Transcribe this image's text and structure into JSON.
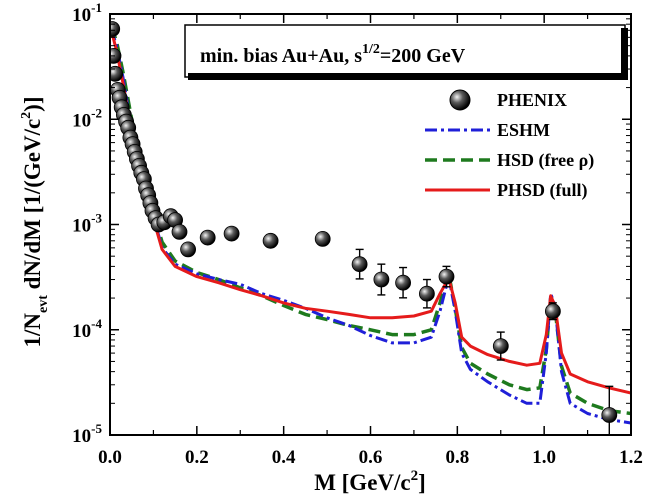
{
  "chart_data": {
    "type": "line",
    "annotation": {
      "pre": "min. bias Au+Au,  s",
      "sup": "1/2",
      "post": "=200 GeV"
    },
    "xlabel": {
      "main": "M  [GeV/c",
      "sup": "2",
      "end": "]"
    },
    "ylabel": {
      "a": "1/N",
      "a_sub": "evt",
      "b": " dN/dM  [1/(GeV/c",
      "b_sup": "2",
      "c": ")]"
    },
    "xlim": [
      0.0,
      1.2
    ],
    "ylim": [
      1e-05,
      0.1
    ],
    "yscale": "log",
    "x_ticks": [
      "0.0",
      "0.2",
      "0.4",
      "0.6",
      "0.8",
      "1.0",
      "1.2"
    ],
    "y_ticks": [
      {
        "base": "10",
        "exp": "-5"
      },
      {
        "base": "10",
        "exp": "-4"
      },
      {
        "base": "10",
        "exp": "-3"
      },
      {
        "base": "10",
        "exp": "-2"
      },
      {
        "base": "10",
        "exp": "-1"
      }
    ],
    "legend_position": "top-right",
    "series": [
      {
        "name": "PHENIX",
        "style": "points",
        "color": "#111111",
        "points": [
          [
            0.005,
            0.072
          ],
          [
            0.008,
            0.04
          ],
          [
            0.012,
            0.027
          ],
          [
            0.018,
            0.019
          ],
          [
            0.022,
            0.016
          ],
          [
            0.027,
            0.013
          ],
          [
            0.032,
            0.011
          ],
          [
            0.037,
            0.0095
          ],
          [
            0.042,
            0.0083
          ],
          [
            0.047,
            0.0067
          ],
          [
            0.052,
            0.0058
          ],
          [
            0.057,
            0.0049
          ],
          [
            0.062,
            0.0042
          ],
          [
            0.067,
            0.0036
          ],
          [
            0.072,
            0.0031
          ],
          [
            0.078,
            0.0027
          ],
          [
            0.083,
            0.0022
          ],
          [
            0.088,
            0.0019
          ],
          [
            0.093,
            0.0016
          ],
          [
            0.098,
            0.00135
          ],
          [
            0.105,
            0.00115
          ],
          [
            0.112,
            0.001
          ],
          [
            0.125,
            0.00105
          ],
          [
            0.14,
            0.0012
          ],
          [
            0.15,
            0.0011
          ],
          [
            0.16,
            0.00085
          ],
          [
            0.18,
            0.00058
          ],
          [
            0.225,
            0.00075
          ],
          [
            0.28,
            0.00082
          ],
          [
            0.37,
            0.0007
          ],
          [
            0.49,
            0.00073
          ],
          [
            0.575,
            0.00042
          ],
          [
            0.625,
            0.0003
          ],
          [
            0.675,
            0.00028
          ],
          [
            0.73,
            0.00022
          ],
          [
            0.775,
            0.00032
          ],
          [
            0.9,
            7e-05
          ],
          [
            1.02,
            0.00015
          ],
          [
            1.15,
            1.55e-05
          ]
        ],
        "errors_up": [
          [
            0.575,
            0.00058
          ],
          [
            0.625,
            0.00042
          ],
          [
            0.675,
            0.00039
          ],
          [
            0.73,
            0.0003
          ],
          [
            0.775,
            0.0004
          ],
          [
            0.9,
            9.5e-05
          ],
          [
            1.02,
            0.00018
          ],
          [
            1.15,
            2.9e-05
          ]
        ]
      },
      {
        "name": "ESHM",
        "style": "dash-dot",
        "color": "#1f1fd8",
        "points": [
          [
            0.003,
            0.072
          ],
          [
            0.015,
            0.05
          ],
          [
            0.03,
            0.025
          ],
          [
            0.05,
            0.008
          ],
          [
            0.07,
            0.0035
          ],
          [
            0.09,
            0.0017
          ],
          [
            0.105,
            0.001
          ],
          [
            0.12,
            0.0006
          ],
          [
            0.15,
            0.00042
          ],
          [
            0.2,
            0.00034
          ],
          [
            0.25,
            0.0003
          ],
          [
            0.3,
            0.00027
          ],
          [
            0.35,
            0.00022
          ],
          [
            0.4,
            0.00019
          ],
          [
            0.45,
            0.00016
          ],
          [
            0.5,
            0.00013
          ],
          [
            0.55,
            0.00011
          ],
          [
            0.6,
            8.8e-05
          ],
          [
            0.65,
            7.5e-05
          ],
          [
            0.7,
            7.5e-05
          ],
          [
            0.74,
            8.5e-05
          ],
          [
            0.76,
            0.00015
          ],
          [
            0.78,
            0.00032
          ],
          [
            0.795,
            0.00015
          ],
          [
            0.81,
            6e-05
          ],
          [
            0.83,
            4.2e-05
          ],
          [
            0.87,
            3.2e-05
          ],
          [
            0.92,
            2.4e-05
          ],
          [
            0.96,
            2e-05
          ],
          [
            0.99,
            2e-05
          ],
          [
            1.005,
            6e-05
          ],
          [
            1.015,
            0.00022
          ],
          [
            1.025,
            0.00017
          ],
          [
            1.04,
            4e-05
          ],
          [
            1.06,
            2e-05
          ],
          [
            1.1,
            1.6e-05
          ],
          [
            1.15,
            1.4e-05
          ],
          [
            1.2,
            1.3e-05
          ]
        ]
      },
      {
        "name": "HSD (free ρ)",
        "style": "dashed",
        "color": "#1e7a1e",
        "points": [
          [
            0.003,
            0.075
          ],
          [
            0.015,
            0.055
          ],
          [
            0.03,
            0.028
          ],
          [
            0.05,
            0.01
          ],
          [
            0.07,
            0.0042
          ],
          [
            0.09,
            0.0019
          ],
          [
            0.105,
            0.0011
          ],
          [
            0.12,
            0.00068
          ],
          [
            0.15,
            0.00045
          ],
          [
            0.2,
            0.00035
          ],
          [
            0.25,
            0.0003
          ],
          [
            0.3,
            0.00025
          ],
          [
            0.35,
            0.00021
          ],
          [
            0.4,
            0.00017
          ],
          [
            0.45,
            0.00014
          ],
          [
            0.5,
            0.000125
          ],
          [
            0.55,
            0.00011
          ],
          [
            0.6,
            0.0001
          ],
          [
            0.65,
            9e-05
          ],
          [
            0.7,
            9e-05
          ],
          [
            0.74,
            0.0001
          ],
          [
            0.76,
            0.00018
          ],
          [
            0.78,
            0.00034
          ],
          [
            0.795,
            0.00016
          ],
          [
            0.81,
            6.8e-05
          ],
          [
            0.83,
            4.8e-05
          ],
          [
            0.87,
            3.8e-05
          ],
          [
            0.92,
            3e-05
          ],
          [
            0.96,
            2.7e-05
          ],
          [
            0.99,
            2.8e-05
          ],
          [
            1.005,
            6.5e-05
          ],
          [
            1.015,
            0.0002
          ],
          [
            1.025,
            0.00016
          ],
          [
            1.04,
            4.5e-05
          ],
          [
            1.06,
            2.5e-05
          ],
          [
            1.1,
            2e-05
          ],
          [
            1.15,
            1.7e-05
          ],
          [
            1.2,
            1.6e-05
          ]
        ]
      },
      {
        "name": "PHSD (full)",
        "style": "solid",
        "color": "#e51b1b",
        "points": [
          [
            0.003,
            0.07
          ],
          [
            0.015,
            0.045
          ],
          [
            0.03,
            0.022
          ],
          [
            0.05,
            0.0075
          ],
          [
            0.07,
            0.0033
          ],
          [
            0.09,
            0.0016
          ],
          [
            0.105,
            0.00095
          ],
          [
            0.12,
            0.00058
          ],
          [
            0.15,
            0.0004
          ],
          [
            0.2,
            0.00032
          ],
          [
            0.25,
            0.00028
          ],
          [
            0.3,
            0.00024
          ],
          [
            0.35,
            0.00021
          ],
          [
            0.4,
            0.00018
          ],
          [
            0.45,
            0.00016
          ],
          [
            0.5,
            0.00015
          ],
          [
            0.55,
            0.00014
          ],
          [
            0.6,
            0.00013
          ],
          [
            0.65,
            0.00013
          ],
          [
            0.7,
            0.000135
          ],
          [
            0.74,
            0.00015
          ],
          [
            0.76,
            0.00022
          ],
          [
            0.78,
            0.00031
          ],
          [
            0.795,
            0.00018
          ],
          [
            0.81,
            8.5e-05
          ],
          [
            0.83,
            7e-05
          ],
          [
            0.87,
            5.8e-05
          ],
          [
            0.92,
            5e-05
          ],
          [
            0.96,
            4.6e-05
          ],
          [
            0.99,
            4.8e-05
          ],
          [
            1.005,
            9e-05
          ],
          [
            1.015,
            0.00021
          ],
          [
            1.025,
            0.00017
          ],
          [
            1.04,
            6e-05
          ],
          [
            1.06,
            3.8e-05
          ],
          [
            1.1,
            3.2e-05
          ],
          [
            1.15,
            2.8e-05
          ],
          [
            1.2,
            2.5e-05
          ]
        ]
      }
    ]
  }
}
